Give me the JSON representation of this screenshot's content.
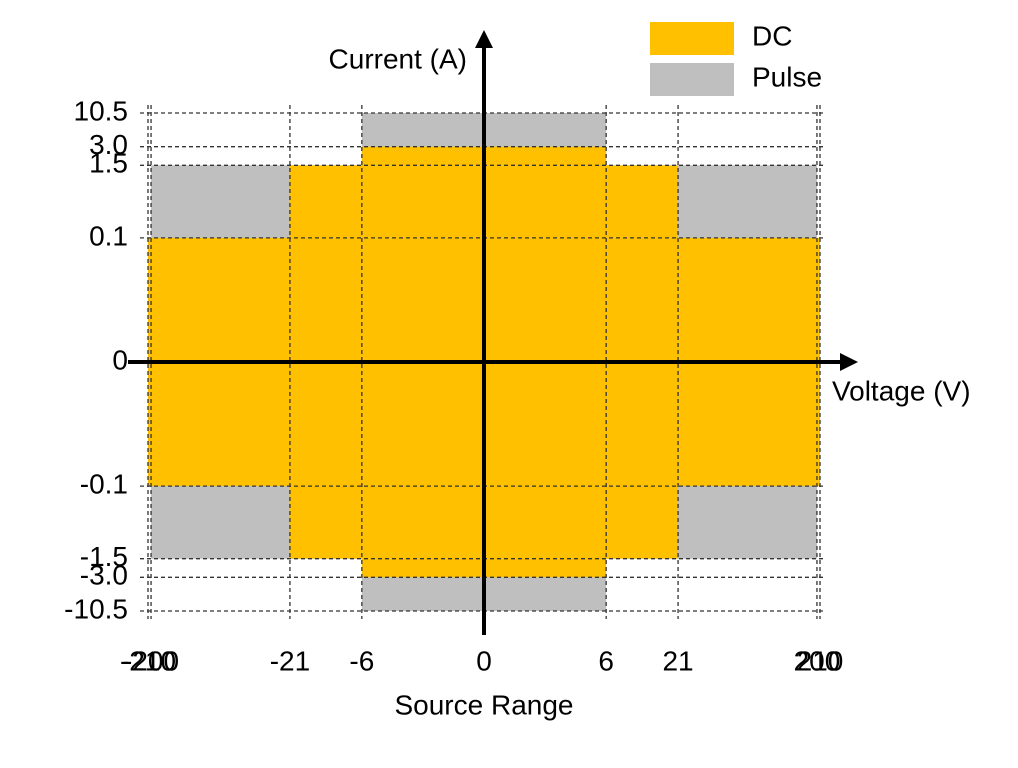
{
  "chart_data": {
    "type": "region",
    "y_label": "Current (A)",
    "x_label": "Voltage (V)",
    "x_title": "Source Range",
    "xscale": "symlog",
    "yscale": "symlog",
    "xlim": [
      -210,
      210
    ],
    "ylim": [
      -10.5,
      10.5
    ],
    "xticks": [
      -210,
      -200,
      -21,
      -6,
      0,
      6,
      21,
      200,
      210
    ],
    "yticks": [
      10.5,
      {
        "value": 3,
        "label": "3.0"
      },
      1.5,
      0.1,
      0,
      -0.1,
      -1.5,
      {
        "value": -3,
        "label": "-3.0"
      },
      -10.5
    ],
    "grid": true,
    "legend": "top-right",
    "series": [
      {
        "name": "Pulse",
        "color": "#bfbfbf",
        "voltage": [
          200,
          6
        ],
        "current": [
          1.5,
          10.5
        ]
      },
      {
        "name": "DC",
        "color": "#ffc000",
        "voltage": [
          210,
          21,
          6
        ],
        "current": [
          0.1,
          1.5,
          3
        ]
      }
    ]
  }
}
